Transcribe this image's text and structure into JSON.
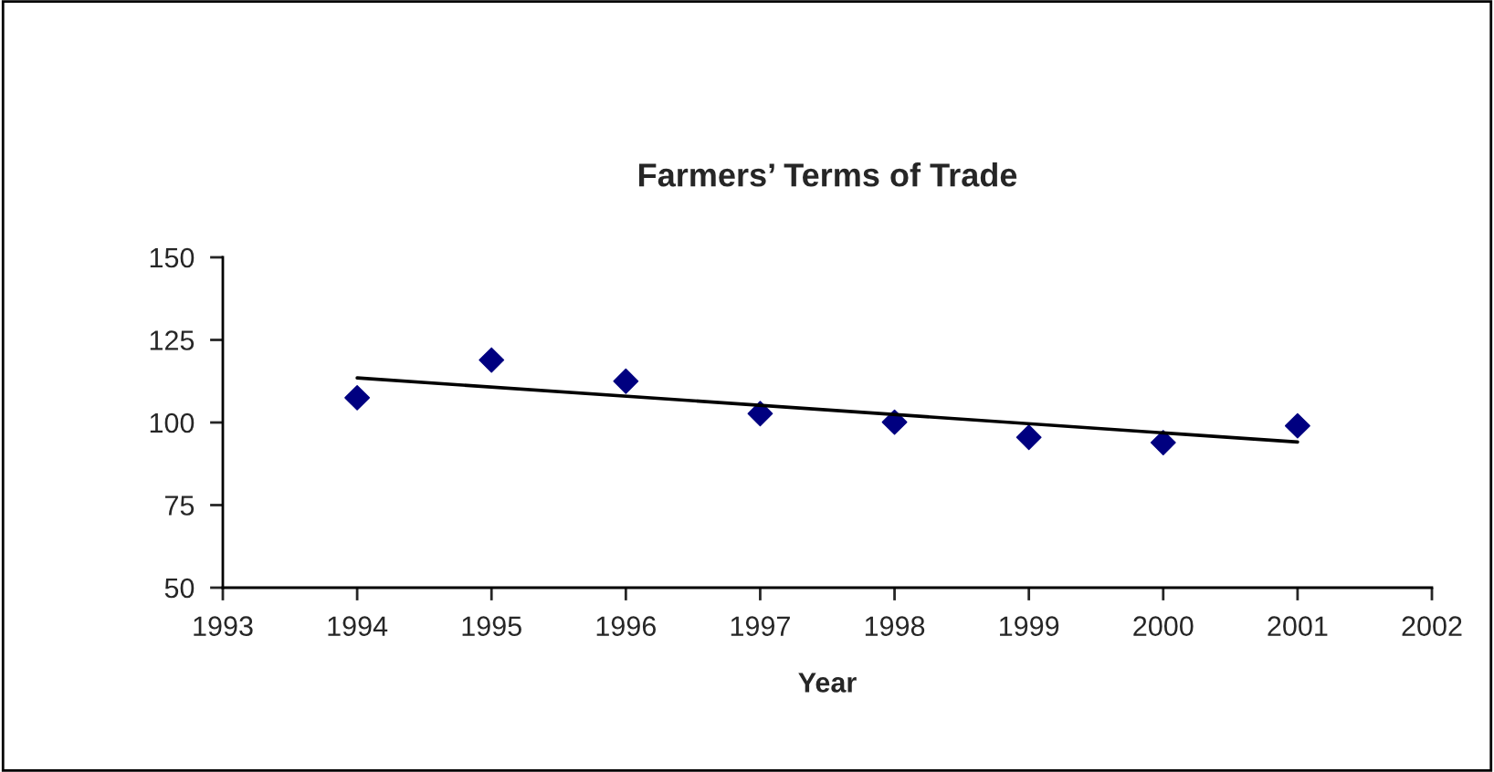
{
  "chart_data": {
    "type": "scatter",
    "title": "Farmers’ Terms of Trade",
    "xlabel": "Year",
    "x": [
      1994,
      1995,
      1996,
      1997,
      1998,
      1999,
      2000,
      2001
    ],
    "series": [
      {
        "marker": "diamond",
        "color": "#000080",
        "values": [
          107.5,
          118.9,
          112.5,
          102.7,
          100.1,
          95.5,
          93.9,
          99.0
        ]
      },
      {
        "type": "line",
        "marker": "none",
        "color": "#000000",
        "x": [
          1994,
          2001
        ],
        "values": [
          113.5,
          94.1
        ]
      }
    ],
    "xlim": [
      1993,
      2002
    ],
    "xticks": [
      1993,
      1994,
      1995,
      1996,
      1997,
      1998,
      1999,
      2000,
      2001,
      2002
    ],
    "ylim": [
      50,
      150
    ],
    "yticks": [
      50,
      75,
      100,
      125,
      150
    ],
    "grid": false,
    "legend": false
  }
}
